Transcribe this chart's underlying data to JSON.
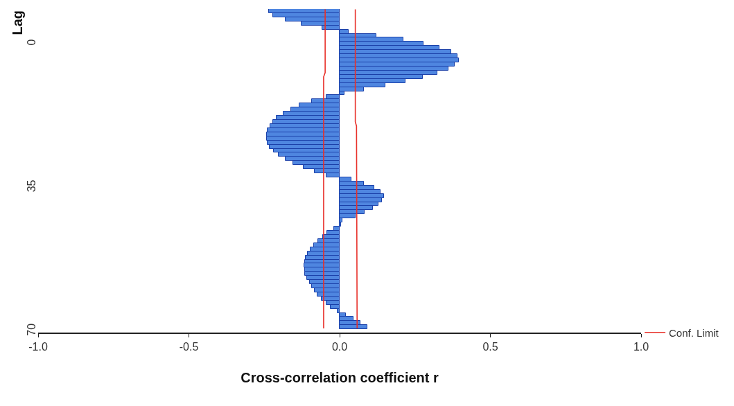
{
  "chart_data": {
    "type": "bar",
    "orientation": "horizontal",
    "xlabel": "Cross-correlation coefficient r",
    "ylabel": "Lag",
    "x": [
      -8,
      -7,
      -6,
      -5,
      -4,
      -3,
      -2,
      -1,
      0,
      1,
      2,
      3,
      4,
      5,
      6,
      7,
      8,
      9,
      10,
      11,
      12,
      13,
      14,
      15,
      16,
      17,
      18,
      19,
      20,
      21,
      22,
      23,
      24,
      25,
      26,
      27,
      28,
      29,
      30,
      31,
      32,
      33,
      34,
      35,
      36,
      37,
      38,
      39,
      40,
      41,
      42,
      43,
      44,
      45,
      46,
      47,
      48,
      49,
      50,
      51,
      52,
      53,
      54,
      55,
      56,
      57,
      58,
      59,
      60,
      61,
      62,
      63,
      64,
      65,
      66,
      67,
      68,
      69
    ],
    "series": [
      {
        "color": "#4f86e0",
        "values": [
          -0.235,
          -0.22,
          -0.18,
          -0.126,
          -0.058,
          0.031,
          0.121,
          0.211,
          0.279,
          0.332,
          0.369,
          0.391,
          0.396,
          0.381,
          0.36,
          0.324,
          0.275,
          0.219,
          0.151,
          0.08,
          0.016,
          -0.044,
          -0.091,
          -0.133,
          -0.161,
          -0.187,
          -0.21,
          -0.221,
          -0.231,
          -0.239,
          -0.242,
          -0.242,
          -0.24,
          -0.233,
          -0.219,
          -0.202,
          -0.18,
          -0.153,
          -0.12,
          -0.082,
          -0.044,
          0.038,
          0.08,
          0.114,
          0.136,
          0.147,
          0.14,
          0.129,
          0.11,
          0.083,
          0.053,
          0.01,
          0.004,
          -0.018,
          -0.041,
          -0.056,
          -0.071,
          -0.086,
          -0.097,
          -0.106,
          -0.112,
          -0.116,
          -0.117,
          -0.116,
          -0.114,
          -0.108,
          -0.1,
          -0.091,
          -0.082,
          -0.074,
          -0.059,
          -0.044,
          -0.029,
          -0.007,
          0.02,
          0.046,
          0.068,
          0.093
        ]
      },
      {
        "type": "line",
        "name": "Conf. Limit",
        "color": "#e8312a",
        "x": [
          -8.4,
          7,
          8,
          69.3
        ],
        "values": [
          -0.048,
          -0.048,
          -0.053,
          -0.053
        ]
      },
      {
        "type": "line",
        "color": "#e8312a",
        "x": [
          -8.4,
          19,
          20,
          69.3
        ],
        "values": [
          0.052,
          0.052,
          0.056,
          0.058
        ]
      }
    ],
    "xlim": [
      -1.0,
      1.0
    ],
    "xticks": [
      {
        "value": -1,
        "label": "-1.0"
      },
      -0.5,
      {
        "value": 0,
        "label": "0.0"
      },
      0.5,
      {
        "value": 1,
        "label": "1.0"
      }
    ],
    "ylim": [
      70.3,
      -8.5
    ],
    "yticks": [
      0,
      35,
      70
    ],
    "legend": "bottom right",
    "line_style": "solid",
    "marker": "none"
  }
}
